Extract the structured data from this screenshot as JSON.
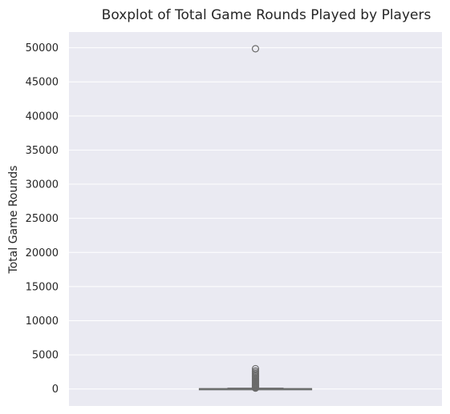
{
  "chart_data": {
    "type": "box",
    "title": "Boxplot of Total Game Rounds Played by Players",
    "xlabel": "",
    "ylabel": "Total Game Rounds",
    "ylim": [
      -2500,
      52300
    ],
    "yticks": [
      0,
      5000,
      10000,
      15000,
      20000,
      25000,
      30000,
      35000,
      40000,
      45000,
      50000
    ],
    "grid": true,
    "box": {
      "whisker_low": 0,
      "q1": 5,
      "median": 16,
      "q3": 51,
      "whisker_high": 120,
      "outliers": [
        49854,
        2961,
        2640,
        2438,
        2251,
        2063,
        1906,
        1754,
        1602,
        1455,
        1313,
        1178,
        1046,
        921,
        803,
        694,
        590,
        497,
        410,
        330,
        260,
        198,
        150,
        122
      ]
    },
    "colors": {
      "background": "#eaeaf2",
      "grid": "#ffffff",
      "box_fill": "#8fd0a8",
      "box_edge": "#6b6b6b",
      "text": "#262626"
    }
  }
}
